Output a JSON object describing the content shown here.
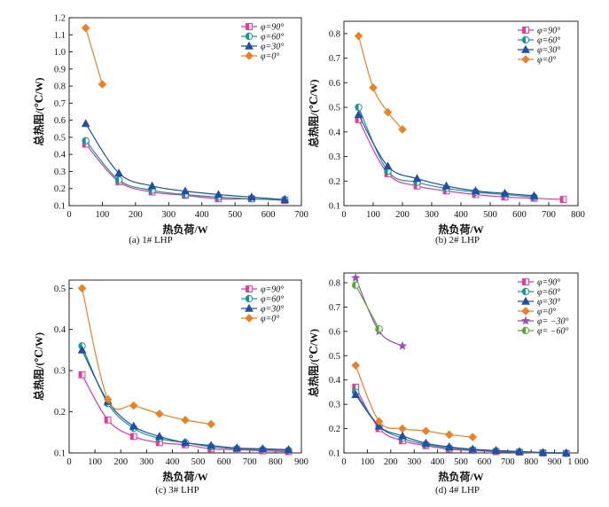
{
  "figure": {
    "ylabel": "总热阻/(℃/W)",
    "xlabel": "热负荷/W"
  },
  "colors": {
    "phi90": "#ee3399",
    "phi60": "#10999a",
    "phi30": "#1f4fa8",
    "phi0": "#f07f1e",
    "phim30": "#9b4fb5",
    "phim60": "#55aa33"
  },
  "chart_data": [
    {
      "type": "line",
      "caption": "(a) 1# LHP",
      "xlabel": "热负荷/W",
      "ylabel": "总热阻/(℃/W)",
      "xlim": [
        0,
        700
      ],
      "ylim": [
        0.1,
        1.2
      ],
      "xticks": [
        "0",
        "100",
        "200",
        "300",
        "400",
        "500",
        "600",
        "700"
      ],
      "yticks": [
        "0.1",
        "0.2",
        "0.3",
        "0.4",
        "0.5",
        "0.6",
        "0.7",
        "0.8",
        "0.9",
        "1.0",
        "1.1",
        "1.2"
      ],
      "legend_position": "top-right",
      "series": [
        {
          "name": "φ=90°",
          "color_key": "phi90",
          "marker": "square-half",
          "x": [
            50,
            150,
            250,
            350,
            450,
            550,
            650
          ],
          "y": [
            0.46,
            0.24,
            0.18,
            0.16,
            0.14,
            0.14,
            0.13
          ]
        },
        {
          "name": "φ=60°",
          "color_key": "phi60",
          "marker": "circle-half",
          "x": [
            50,
            150,
            250,
            350,
            450,
            550,
            650
          ],
          "y": [
            0.48,
            0.25,
            0.19,
            0.165,
            0.15,
            0.14,
            0.135
          ]
        },
        {
          "name": "φ=30°",
          "color_key": "phi30",
          "marker": "triangle",
          "x": [
            50,
            150,
            250,
            350,
            450,
            550,
            650
          ],
          "y": [
            0.58,
            0.29,
            0.215,
            0.185,
            0.165,
            0.15,
            0.135
          ]
        },
        {
          "name": "φ=0°",
          "color_key": "phi0",
          "marker": "diamond",
          "x": [
            50,
            100
          ],
          "y": [
            1.14,
            0.81
          ]
        }
      ]
    },
    {
      "type": "line",
      "caption": "(b) 2# LHP",
      "xlabel": "热负荷/W",
      "ylabel": "总热阻/(℃/W)",
      "xlim": [
        0,
        800
      ],
      "ylim": [
        0.1,
        0.85
      ],
      "xticks": [
        "0",
        "100",
        "200",
        "300",
        "400",
        "500",
        "600",
        "700",
        "800"
      ],
      "yticks": [
        "0.1",
        "0.2",
        "0.3",
        "0.4",
        "0.5",
        "0.6",
        "0.7",
        "0.8"
      ],
      "legend_position": "top-right",
      "series": [
        {
          "name": "φ=90°",
          "color_key": "phi90",
          "marker": "square-half",
          "x": [
            50,
            150,
            250,
            350,
            450,
            550,
            650,
            750
          ],
          "y": [
            0.45,
            0.23,
            0.18,
            0.16,
            0.145,
            0.135,
            0.13,
            0.125
          ]
        },
        {
          "name": "φ=60°",
          "color_key": "phi60",
          "marker": "circle-half",
          "x": [
            50,
            150,
            250,
            350,
            450,
            550,
            650
          ],
          "y": [
            0.5,
            0.24,
            0.195,
            0.17,
            0.155,
            0.145,
            0.135
          ]
        },
        {
          "name": "φ=30°",
          "color_key": "phi30",
          "marker": "triangle",
          "x": [
            50,
            150,
            250,
            350,
            450,
            550,
            650
          ],
          "y": [
            0.47,
            0.26,
            0.21,
            0.18,
            0.16,
            0.15,
            0.14
          ]
        },
        {
          "name": "φ=0°",
          "color_key": "phi0",
          "marker": "diamond",
          "x": [
            50,
            100,
            150,
            200
          ],
          "y": [
            0.79,
            0.58,
            0.48,
            0.41
          ]
        }
      ]
    },
    {
      "type": "line",
      "caption": "(c) 3# LHP",
      "xlabel": "热负荷/W",
      "ylabel": "总热阻/(℃/W)",
      "xlim": [
        0,
        900
      ],
      "ylim": [
        0.1,
        0.52
      ],
      "xticks": [
        "0",
        "100",
        "200",
        "300",
        "400",
        "500",
        "600",
        "700",
        "800",
        "900"
      ],
      "yticks": [
        "0.1",
        "0.2",
        "0.3",
        "0.4",
        "0.5"
      ],
      "legend_position": "top-right",
      "series": [
        {
          "name": "φ=90°",
          "color_key": "phi90",
          "marker": "square-half",
          "x": [
            50,
            150,
            250,
            350,
            450,
            550,
            650,
            750,
            850
          ],
          "y": [
            0.29,
            0.18,
            0.14,
            0.125,
            0.12,
            0.11,
            0.108,
            0.105,
            0.103
          ]
        },
        {
          "name": "φ=60°",
          "color_key": "phi60",
          "marker": "circle-half",
          "x": [
            50,
            150,
            250,
            350,
            450,
            550,
            650,
            750,
            850
          ],
          "y": [
            0.36,
            0.22,
            0.16,
            0.135,
            0.125,
            0.115,
            0.11,
            0.108,
            0.106
          ]
        },
        {
          "name": "φ=30°",
          "color_key": "phi30",
          "marker": "triangle",
          "x": [
            50,
            150,
            250,
            350,
            450,
            550,
            650,
            750,
            850
          ],
          "y": [
            0.35,
            0.225,
            0.165,
            0.14,
            0.125,
            0.118,
            0.112,
            0.11,
            0.108
          ]
        },
        {
          "name": "φ=0°",
          "color_key": "phi0",
          "marker": "diamond",
          "x": [
            50,
            150,
            250,
            350,
            450,
            550
          ],
          "y": [
            0.5,
            0.23,
            0.215,
            0.195,
            0.18,
            0.17
          ]
        }
      ]
    },
    {
      "type": "line",
      "caption": "(d) 4# LHP",
      "xlabel": "热负荷/W",
      "ylabel": "总热阻/(℃/W)",
      "xlim": [
        0,
        1000
      ],
      "ylim": [
        0.1,
        0.84
      ],
      "xticks": [
        "0",
        "100",
        "200",
        "300",
        "400",
        "500",
        "600",
        "700",
        "800",
        "900",
        "1 000"
      ],
      "yticks": [
        "0.1",
        "0.2",
        "0.3",
        "0.4",
        "0.5",
        "0.6",
        "0.7",
        "0.8"
      ],
      "legend_position": "top-right",
      "series": [
        {
          "name": "φ=90°",
          "color_key": "phi90",
          "marker": "square-half",
          "x": [
            50,
            150,
            250,
            350,
            450,
            550,
            650,
            750,
            850,
            950
          ],
          "y": [
            0.37,
            0.2,
            0.15,
            0.13,
            0.115,
            0.11,
            0.105,
            0.103,
            0.1,
            0.098
          ]
        },
        {
          "name": "φ=60°",
          "color_key": "phi60",
          "marker": "circle-half",
          "x": [
            50,
            150,
            250,
            350,
            450,
            550,
            650,
            750,
            850,
            950
          ],
          "y": [
            0.35,
            0.21,
            0.16,
            0.135,
            0.12,
            0.112,
            0.108,
            0.104,
            0.1,
            0.098
          ]
        },
        {
          "name": "φ=30°",
          "color_key": "phi30",
          "marker": "triangle",
          "x": [
            50,
            150,
            250,
            350,
            450,
            550,
            650,
            750,
            850,
            950
          ],
          "y": [
            0.34,
            0.21,
            0.17,
            0.14,
            0.125,
            0.115,
            0.11,
            0.106,
            0.102,
            0.1
          ]
        },
        {
          "name": "φ=0°",
          "color_key": "phi0",
          "marker": "diamond",
          "x": [
            50,
            150,
            250,
            350,
            450,
            550
          ],
          "y": [
            0.46,
            0.23,
            0.2,
            0.19,
            0.175,
            0.165
          ]
        },
        {
          "name": "φ= −30°",
          "color_key": "phim30",
          "marker": "star",
          "x": [
            50,
            150,
            250
          ],
          "y": [
            0.82,
            0.6,
            0.54
          ]
        },
        {
          "name": "φ= −60°",
          "color_key": "phim60",
          "marker": "circle-half",
          "x": [
            50,
            150
          ],
          "y": [
            0.79,
            0.61
          ]
        }
      ]
    }
  ]
}
